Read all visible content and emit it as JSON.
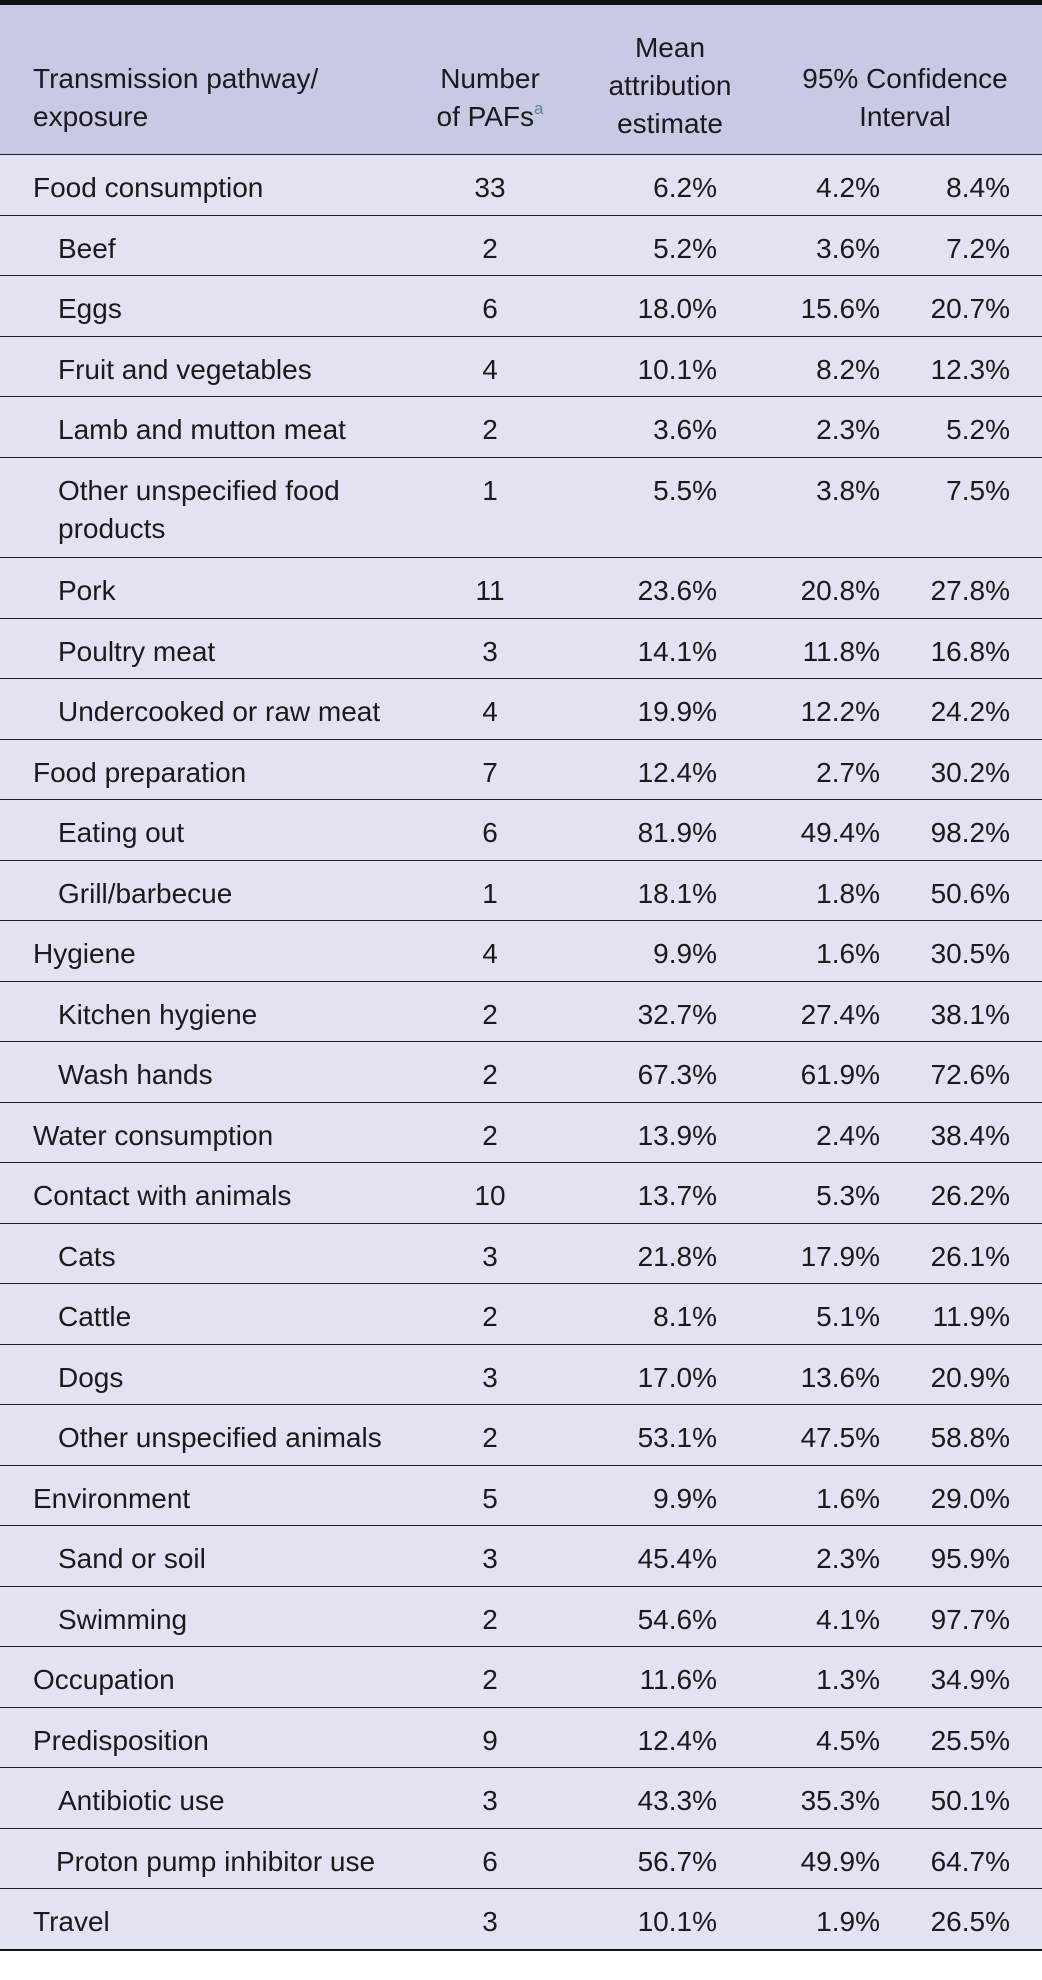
{
  "table": {
    "headers": {
      "pathway": [
        "Transmission pathway/",
        "exposure"
      ],
      "number": [
        "Number",
        "of PAFs"
      ],
      "number_footnote": "a",
      "mean": [
        "Mean",
        "attribution",
        "estimate"
      ],
      "ci": [
        "95% Confidence",
        "Interval"
      ]
    },
    "rows": [
      {
        "label": "Food consumption",
        "n": "33",
        "mean": "6.2%",
        "lo": "4.2%",
        "hi": "8.4%",
        "level": 0
      },
      {
        "label": "Beef",
        "n": "2",
        "mean": "5.2%",
        "lo": "3.6%",
        "hi": "7.2%",
        "level": 1
      },
      {
        "label": "Eggs",
        "n": "6",
        "mean": "18.0%",
        "lo": "15.6%",
        "hi": "20.7%",
        "level": 1
      },
      {
        "label": "Fruit and vegetables",
        "n": "4",
        "mean": "10.1%",
        "lo": "8.2%",
        "hi": "12.3%",
        "level": 1
      },
      {
        "label": "Lamb and mutton meat",
        "n": "2",
        "mean": "3.6%",
        "lo": "2.3%",
        "hi": "5.2%",
        "level": 1
      },
      {
        "label": "Other unspecified food products",
        "n": "1",
        "mean": "5.5%",
        "lo": "3.8%",
        "hi": "7.5%",
        "level": 1
      },
      {
        "label": "Pork",
        "n": "11",
        "mean": "23.6%",
        "lo": "20.8%",
        "hi": "27.8%",
        "level": 1
      },
      {
        "label": "Poultry meat",
        "n": "3",
        "mean": "14.1%",
        "lo": "11.8%",
        "hi": "16.8%",
        "level": 1
      },
      {
        "label": "Undercooked or raw meat",
        "n": "4",
        "mean": "19.9%",
        "lo": "12.2%",
        "hi": "24.2%",
        "level": 1
      },
      {
        "label": "Food preparation",
        "n": "7",
        "mean": "12.4%",
        "lo": "2.7%",
        "hi": "30.2%",
        "level": 0
      },
      {
        "label": "Eating out",
        "n": "6",
        "mean": "81.9%",
        "lo": "49.4%",
        "hi": "98.2%",
        "level": 1
      },
      {
        "label": "Grill/barbecue",
        "n": "1",
        "mean": "18.1%",
        "lo": "1.8%",
        "hi": "50.6%",
        "level": 1
      },
      {
        "label": "Hygiene",
        "n": "4",
        "mean": "9.9%",
        "lo": "1.6%",
        "hi": "30.5%",
        "level": 0
      },
      {
        "label": "Kitchen hygiene",
        "n": "2",
        "mean": "32.7%",
        "lo": "27.4%",
        "hi": "38.1%",
        "level": 1
      },
      {
        "label": "Wash hands",
        "n": "2",
        "mean": "67.3%",
        "lo": "61.9%",
        "hi": "72.6%",
        "level": 1
      },
      {
        "label": "Water consumption",
        "n": "2",
        "mean": "13.9%",
        "lo": "2.4%",
        "hi": "38.4%",
        "level": 0
      },
      {
        "label": "Contact with animals",
        "n": "10",
        "mean": "13.7%",
        "lo": "5.3%",
        "hi": "26.2%",
        "level": 0
      },
      {
        "label": "Cats",
        "n": "3",
        "mean": "21.8%",
        "lo": "17.9%",
        "hi": "26.1%",
        "level": 1
      },
      {
        "label": "Cattle",
        "n": "2",
        "mean": "8.1%",
        "lo": "5.1%",
        "hi": "11.9%",
        "level": 1
      },
      {
        "label": "Dogs",
        "n": "3",
        "mean": "17.0%",
        "lo": "13.6%",
        "hi": "20.9%",
        "level": 1
      },
      {
        "label": "Other unspecified animals",
        "n": "2",
        "mean": "53.1%",
        "lo": "47.5%",
        "hi": "58.8%",
        "level": 1
      },
      {
        "label": "Environment",
        "n": "5",
        "mean": "9.9%",
        "lo": "1.6%",
        "hi": "29.0%",
        "level": 0
      },
      {
        "label": "Sand or soil",
        "n": "3",
        "mean": "45.4%",
        "lo": "2.3%",
        "hi": "95.9%",
        "level": 1
      },
      {
        "label": "Swimming",
        "n": "2",
        "mean": "54.6%",
        "lo": "4.1%",
        "hi": "97.7%",
        "level": 1
      },
      {
        "label": "Occupation",
        "n": "2",
        "mean": "11.6%",
        "lo": "1.3%",
        "hi": "34.9%",
        "level": 0
      },
      {
        "label": "Predisposition",
        "n": "9",
        "mean": "12.4%",
        "lo": "4.5%",
        "hi": "25.5%",
        "level": 0
      },
      {
        "label": "Antibiotic use",
        "n": "3",
        "mean": "43.3%",
        "lo": "35.3%",
        "hi": "50.1%",
        "level": 1
      },
      {
        "label": "Proton pump inhibitor use",
        "n": "6",
        "mean": "56.7%",
        "lo": "49.9%",
        "hi": "64.7%",
        "level": 1
      },
      {
        "label": "Travel",
        "n": "3",
        "mean": "10.1%",
        "lo": "1.9%",
        "hi": "26.5%",
        "level": 0
      }
    ]
  }
}
